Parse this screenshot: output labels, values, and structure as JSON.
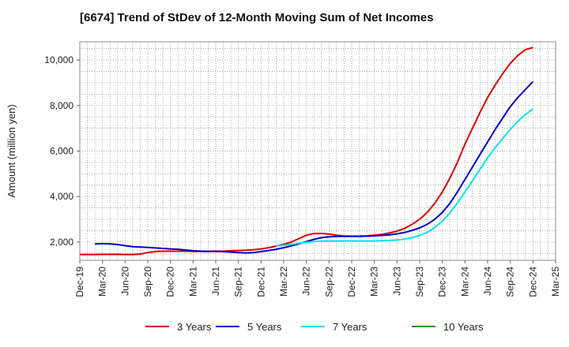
{
  "chart_data": {
    "type": "line",
    "title": "[6674]  Trend of StDev of 12-Month Moving Sum of Net Incomes",
    "xlabel": "",
    "ylabel": "Amount (million yen)",
    "x_ticks": [
      "Dec-19",
      "Mar-20",
      "Jun-20",
      "Sep-20",
      "Dec-20",
      "Mar-21",
      "Jun-21",
      "Sep-21",
      "Dec-21",
      "Mar-22",
      "Jun-22",
      "Sep-22",
      "Dec-22",
      "Mar-23",
      "Jun-23",
      "Sep-23",
      "Dec-23",
      "Mar-24",
      "Jun-24",
      "Sep-24",
      "Dec-24",
      "Mar-25"
    ],
    "y_ticks": [
      "2,000",
      "4,000",
      "6,000",
      "8,000",
      "10,000"
    ],
    "y_tick_values": [
      2000,
      4000,
      6000,
      8000,
      10000
    ],
    "ylim": [
      1200,
      10800
    ],
    "grid": true,
    "legend_position": "bottom",
    "series": [
      {
        "name": "3 Years",
        "color": "#dd0000",
        "points": [
          [
            "Dec-19",
            1450
          ],
          [
            "Jan-20",
            1450
          ],
          [
            "Feb-20",
            1450
          ],
          [
            "Mar-20",
            1460
          ],
          [
            "Apr-20",
            1460
          ],
          [
            "May-20",
            1460
          ],
          [
            "Jun-20",
            1450
          ],
          [
            "Jul-20",
            1450
          ],
          [
            "Aug-20",
            1470
          ],
          [
            "Sep-20",
            1540
          ],
          [
            "Oct-20",
            1580
          ],
          [
            "Nov-20",
            1600
          ],
          [
            "Dec-20",
            1600
          ],
          [
            "Jan-21",
            1600
          ],
          [
            "Feb-21",
            1600
          ],
          [
            "Mar-21",
            1590
          ],
          [
            "Apr-21",
            1590
          ],
          [
            "May-21",
            1590
          ],
          [
            "Jun-21",
            1600
          ],
          [
            "Jul-21",
            1600
          ],
          [
            "Aug-21",
            1620
          ],
          [
            "Sep-21",
            1630
          ],
          [
            "Oct-21",
            1640
          ],
          [
            "Nov-21",
            1660
          ],
          [
            "Dec-21",
            1700
          ],
          [
            "Jan-22",
            1750
          ],
          [
            "Feb-22",
            1820
          ],
          [
            "Mar-22",
            1900
          ],
          [
            "Apr-22",
            2000
          ],
          [
            "May-22",
            2150
          ],
          [
            "Jun-22",
            2300
          ],
          [
            "Jul-22",
            2370
          ],
          [
            "Aug-22",
            2380
          ],
          [
            "Sep-22",
            2350
          ],
          [
            "Oct-22",
            2300
          ],
          [
            "Nov-22",
            2270
          ],
          [
            "Dec-22",
            2260
          ],
          [
            "Jan-23",
            2260
          ],
          [
            "Feb-23",
            2270
          ],
          [
            "Mar-23",
            2300
          ],
          [
            "Apr-23",
            2340
          ],
          [
            "May-23",
            2400
          ],
          [
            "Jun-23",
            2480
          ],
          [
            "Jul-23",
            2600
          ],
          [
            "Aug-23",
            2780
          ],
          [
            "Sep-23",
            3000
          ],
          [
            "Oct-23",
            3300
          ],
          [
            "Nov-23",
            3700
          ],
          [
            "Dec-23",
            4200
          ],
          [
            "Jan-24",
            4800
          ],
          [
            "Feb-24",
            5500
          ],
          [
            "Mar-24",
            6300
          ],
          [
            "Apr-24",
            7000
          ],
          [
            "May-24",
            7700
          ],
          [
            "Jun-24",
            8350
          ],
          [
            "Jul-24",
            8900
          ],
          [
            "Aug-24",
            9400
          ],
          [
            "Sep-24",
            9850
          ],
          [
            "Oct-24",
            10200
          ],
          [
            "Nov-24",
            10450
          ],
          [
            "Dec-24",
            10550
          ]
        ]
      },
      {
        "name": "5 Years",
        "color": "#0000cc",
        "points": [
          [
            "Feb-20",
            1920
          ],
          [
            "Mar-20",
            1930
          ],
          [
            "Apr-20",
            1920
          ],
          [
            "May-20",
            1890
          ],
          [
            "Jun-20",
            1840
          ],
          [
            "Jul-20",
            1800
          ],
          [
            "Aug-20",
            1780
          ],
          [
            "Sep-20",
            1760
          ],
          [
            "Oct-20",
            1740
          ],
          [
            "Nov-20",
            1720
          ],
          [
            "Dec-20",
            1700
          ],
          [
            "Jan-21",
            1680
          ],
          [
            "Feb-21",
            1650
          ],
          [
            "Mar-21",
            1620
          ],
          [
            "Apr-21",
            1600
          ],
          [
            "May-21",
            1590
          ],
          [
            "Jun-21",
            1590
          ],
          [
            "Jul-21",
            1580
          ],
          [
            "Aug-21",
            1560
          ],
          [
            "Sep-21",
            1540
          ],
          [
            "Oct-21",
            1520
          ],
          [
            "Nov-21",
            1540
          ],
          [
            "Dec-21",
            1580
          ],
          [
            "Jan-22",
            1630
          ],
          [
            "Feb-22",
            1680
          ],
          [
            "Mar-22",
            1750
          ],
          [
            "Apr-22",
            1830
          ],
          [
            "May-22",
            1920
          ],
          [
            "Jun-22",
            2020
          ],
          [
            "Jul-22",
            2120
          ],
          [
            "Aug-22",
            2190
          ],
          [
            "Sep-22",
            2230
          ],
          [
            "Oct-22",
            2250
          ],
          [
            "Nov-22",
            2250
          ],
          [
            "Dec-22",
            2250
          ],
          [
            "Jan-23",
            2250
          ],
          [
            "Feb-23",
            2260
          ],
          [
            "Mar-23",
            2270
          ],
          [
            "Apr-23",
            2290
          ],
          [
            "May-23",
            2320
          ],
          [
            "Jun-23",
            2360
          ],
          [
            "Jul-23",
            2420
          ],
          [
            "Aug-23",
            2510
          ],
          [
            "Sep-23",
            2620
          ],
          [
            "Oct-23",
            2780
          ],
          [
            "Nov-23",
            3000
          ],
          [
            "Dec-23",
            3300
          ],
          [
            "Jan-24",
            3700
          ],
          [
            "Feb-24",
            4200
          ],
          [
            "Mar-24",
            4750
          ],
          [
            "Apr-24",
            5300
          ],
          [
            "May-24",
            5850
          ],
          [
            "Jun-24",
            6400
          ],
          [
            "Jul-24",
            6950
          ],
          [
            "Aug-24",
            7450
          ],
          [
            "Sep-24",
            7950
          ],
          [
            "Oct-24",
            8350
          ],
          [
            "Nov-24",
            8700
          ],
          [
            "Dec-24",
            9050
          ]
        ]
      },
      {
        "name": "7 Years",
        "color": "#00e5ee",
        "points": [
          [
            "Feb-22",
            1820
          ],
          [
            "Mar-22",
            1860
          ],
          [
            "Apr-22",
            1900
          ],
          [
            "May-22",
            1950
          ],
          [
            "Jun-22",
            1990
          ],
          [
            "Jul-22",
            2020
          ],
          [
            "Aug-22",
            2040
          ],
          [
            "Sep-22",
            2050
          ],
          [
            "Oct-22",
            2050
          ],
          [
            "Nov-22",
            2050
          ],
          [
            "Dec-22",
            2050
          ],
          [
            "Jan-23",
            2050
          ],
          [
            "Feb-23",
            2050
          ],
          [
            "Mar-23",
            2050
          ],
          [
            "Apr-23",
            2060
          ],
          [
            "May-23",
            2070
          ],
          [
            "Jun-23",
            2090
          ],
          [
            "Jul-23",
            2130
          ],
          [
            "Aug-23",
            2190
          ],
          [
            "Sep-23",
            2290
          ],
          [
            "Oct-23",
            2430
          ],
          [
            "Nov-23",
            2640
          ],
          [
            "Dec-23",
            2920
          ],
          [
            "Jan-24",
            3280
          ],
          [
            "Feb-24",
            3720
          ],
          [
            "Mar-24",
            4200
          ],
          [
            "Apr-24",
            4700
          ],
          [
            "May-24",
            5200
          ],
          [
            "Jun-24",
            5700
          ],
          [
            "Jul-24",
            6150
          ],
          [
            "Aug-24",
            6550
          ],
          [
            "Sep-24",
            6950
          ],
          [
            "Oct-24",
            7300
          ],
          [
            "Nov-24",
            7600
          ],
          [
            "Dec-24",
            7850
          ]
        ]
      },
      {
        "name": "10 Years",
        "color": "#228b22",
        "points": []
      }
    ]
  }
}
